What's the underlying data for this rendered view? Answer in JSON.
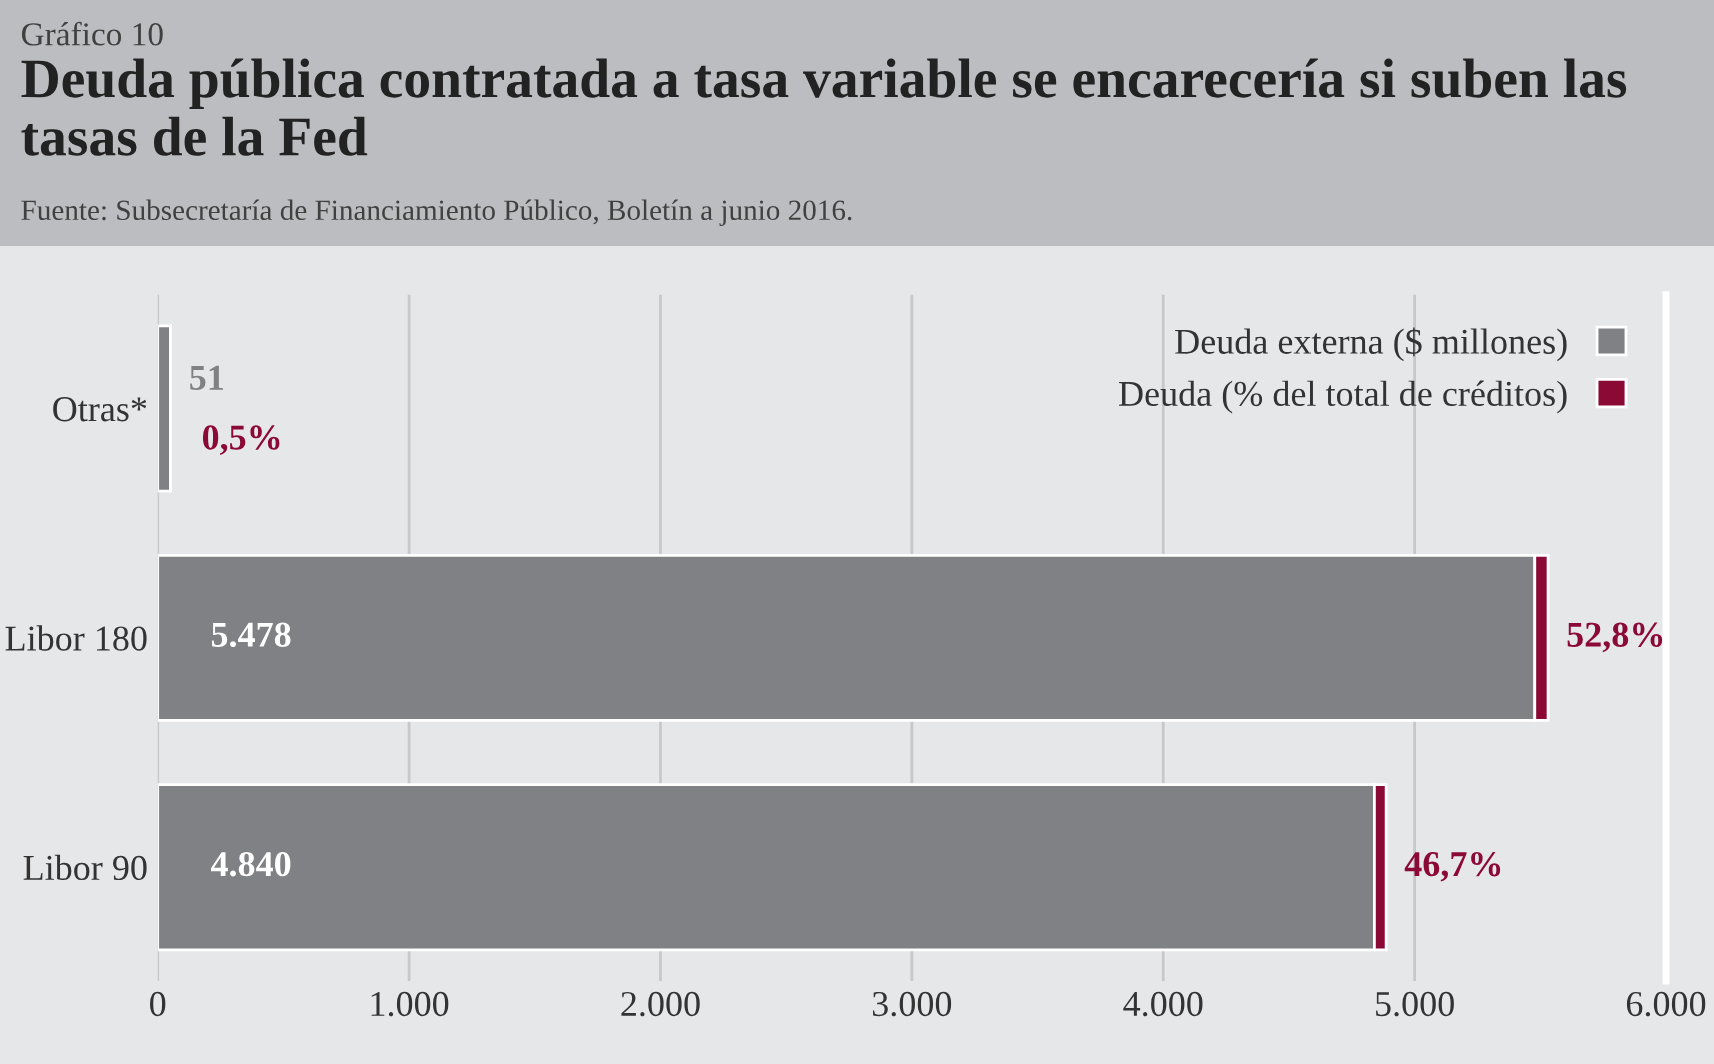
{
  "chart_data": {
    "type": "bar",
    "orientation": "horizontal",
    "stacked": true,
    "subtitle": "Gráfico 10",
    "title": "Deuda pública contratada a tasa variable se encarecería si suben las tasas de la Fed",
    "annotations": [
      "Fuente: Subsecretaría de Financiamiento Público, Boletín a junio 2016."
    ],
    "categories": [
      "Otras*",
      "Libor 180",
      "Libor 90"
    ],
    "series": [
      {
        "name": "Deuda externa ($ millones)",
        "color": "#808184",
        "values": [
          51,
          5478,
          4840
        ],
        "value_labels": [
          "51",
          "5.478",
          "4.840"
        ]
      },
      {
        "name": "Deuda (% del total de créditos)",
        "color": "#8b0a35",
        "values": [
          0.5,
          52.8,
          46.7
        ],
        "value_labels": [
          "0,5%",
          "52,8%",
          "46,7%"
        ]
      }
    ],
    "xlim": [
      0,
      6000
    ],
    "xticks": [
      0,
      {
        "value": 1000,
        "label": "1.000"
      },
      {
        "value": 2000,
        "label": "2.000"
      },
      {
        "value": 3000,
        "label": "3.000"
      },
      {
        "value": 4000,
        "label": "4.000"
      },
      {
        "value": 5000,
        "label": "5.000"
      },
      {
        "value": 6000,
        "label": "6.000"
      }
    ],
    "grid": "x",
    "legend": "top right"
  }
}
